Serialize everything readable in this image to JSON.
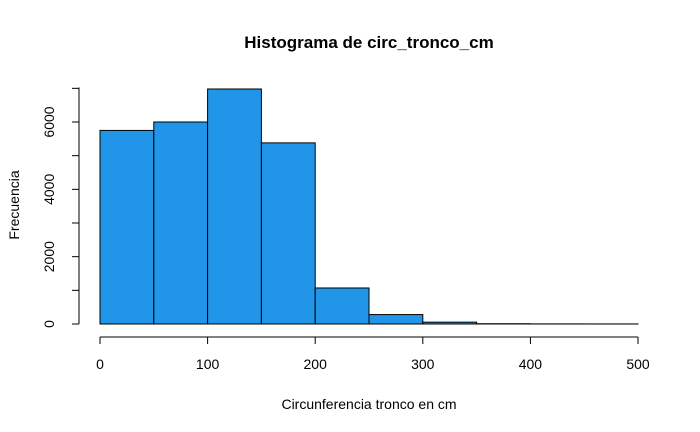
{
  "chart_data": {
    "type": "bar",
    "title": "Histograma de circ_tronco_cm",
    "xlabel": "Circunferencia tronco en cm",
    "ylabel": "Frecuencia",
    "bins": [
      {
        "from": 0,
        "to": 50,
        "count": 5750
      },
      {
        "from": 50,
        "to": 100,
        "count": 6000
      },
      {
        "from": 100,
        "to": 150,
        "count": 6980
      },
      {
        "from": 150,
        "to": 200,
        "count": 5380
      },
      {
        "from": 200,
        "to": 250,
        "count": 1070
      },
      {
        "from": 250,
        "to": 300,
        "count": 280
      },
      {
        "from": 300,
        "to": 350,
        "count": 55
      },
      {
        "from": 350,
        "to": 400,
        "count": 8
      },
      {
        "from": 400,
        "to": 450,
        "count": 3
      },
      {
        "from": 450,
        "to": 500,
        "count": 2
      }
    ],
    "xlim": [
      0,
      500
    ],
    "ylim": [
      0,
      7000
    ],
    "x_ticks": [
      0,
      100,
      200,
      300,
      400,
      500
    ],
    "y_ticks": [
      0,
      2000,
      4000,
      6000
    ],
    "bar_color": "#2196e8",
    "grid": false
  }
}
